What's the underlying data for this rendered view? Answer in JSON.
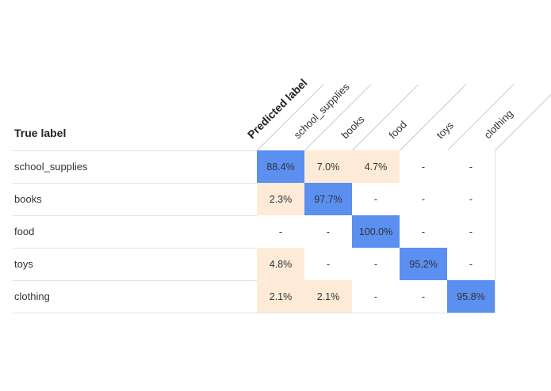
{
  "chart_data": {
    "type": "heatmap",
    "title": "",
    "xlabel": "Predicted label",
    "ylabel": "True label",
    "categories": [
      "school_supplies",
      "books",
      "food",
      "toys",
      "clothing"
    ],
    "matrix": [
      [
        "88.4%",
        "7.0%",
        "4.7%",
        "-",
        "-"
      ],
      [
        "2.3%",
        "97.7%",
        "-",
        "-",
        "-"
      ],
      [
        "-",
        "-",
        "100.0%",
        "-",
        "-"
      ],
      [
        "4.8%",
        "-",
        "-",
        "95.2%",
        "-"
      ],
      [
        "2.1%",
        "2.1%",
        "-",
        "-",
        "95.8%"
      ]
    ],
    "values": [
      [
        88.4,
        7.0,
        4.7,
        0,
        0
      ],
      [
        2.3,
        97.7,
        0,
        0,
        0
      ],
      [
        0,
        0,
        100.0,
        0,
        0
      ],
      [
        4.8,
        0,
        0,
        95.2,
        0
      ],
      [
        2.1,
        2.1,
        0,
        0,
        95.8
      ]
    ],
    "colors": {
      "diagonal": "#5b8ff0",
      "off_diagonal": "#fdebd8",
      "empty": "#ffffff",
      "grid": "#e3e3e3",
      "diag_line": "#cccccc",
      "text": "#333333"
    }
  }
}
